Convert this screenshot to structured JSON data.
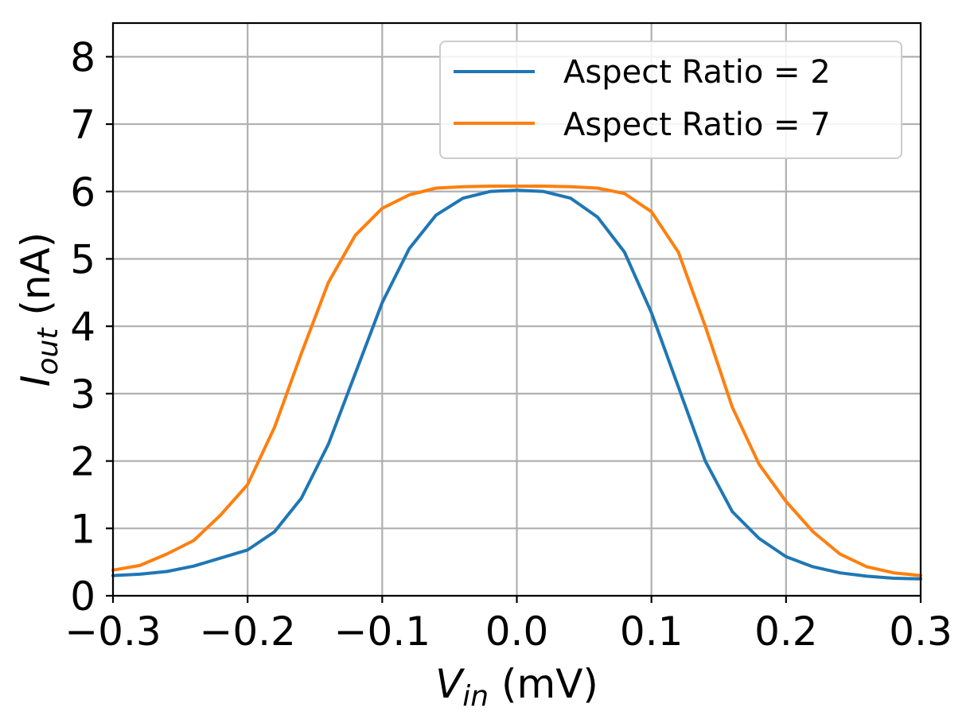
{
  "chart_data": {
    "type": "line",
    "title": "",
    "xlabel": {
      "main": "V",
      "sub": "in",
      "unit": " (mV)"
    },
    "ylabel": {
      "main": "I",
      "sub": "out",
      "unit": " (nA)"
    },
    "xlim": [
      -0.3,
      0.3
    ],
    "ylim": [
      0,
      8.5
    ],
    "xticks": [
      -0.3,
      -0.2,
      -0.1,
      0.0,
      0.1,
      0.2,
      0.3
    ],
    "xtick_labels": [
      "−0.3",
      "−0.2",
      "−0.1",
      "0.0",
      "0.1",
      "0.2",
      "0.3"
    ],
    "yticks": [
      0,
      1,
      2,
      3,
      4,
      5,
      6,
      7,
      8
    ],
    "ytick_labels": [
      "0",
      "1",
      "2",
      "3",
      "4",
      "5",
      "6",
      "7",
      "8"
    ],
    "grid": true,
    "legend_position": "top-right",
    "x": [
      -0.3,
      -0.28,
      -0.26,
      -0.24,
      -0.22,
      -0.2,
      -0.18,
      -0.16,
      -0.14,
      -0.12,
      -0.1,
      -0.08,
      -0.06,
      -0.04,
      -0.02,
      0.0,
      0.02,
      0.04,
      0.06,
      0.08,
      0.1,
      0.12,
      0.14,
      0.16,
      0.18,
      0.2,
      0.22,
      0.24,
      0.26,
      0.28,
      0.3
    ],
    "series": [
      {
        "name": "Aspect Ratio = 2",
        "color": "#1f77b4",
        "values": [
          0.3,
          0.32,
          0.36,
          0.44,
          0.56,
          0.68,
          0.95,
          1.45,
          2.25,
          3.3,
          4.35,
          5.15,
          5.65,
          5.9,
          6.0,
          6.02,
          6.0,
          5.9,
          5.62,
          5.1,
          4.2,
          3.1,
          2.0,
          1.25,
          0.85,
          0.58,
          0.43,
          0.34,
          0.29,
          0.26,
          0.25
        ]
      },
      {
        "name": "Aspect Ratio = 7",
        "color": "#ff7f0e",
        "values": [
          0.38,
          0.45,
          0.62,
          0.82,
          1.2,
          1.65,
          2.5,
          3.6,
          4.65,
          5.35,
          5.75,
          5.95,
          6.05,
          6.07,
          6.08,
          6.08,
          6.08,
          6.07,
          6.05,
          5.97,
          5.7,
          5.1,
          4.0,
          2.8,
          1.95,
          1.4,
          0.95,
          0.62,
          0.43,
          0.34,
          0.3
        ]
      }
    ]
  }
}
